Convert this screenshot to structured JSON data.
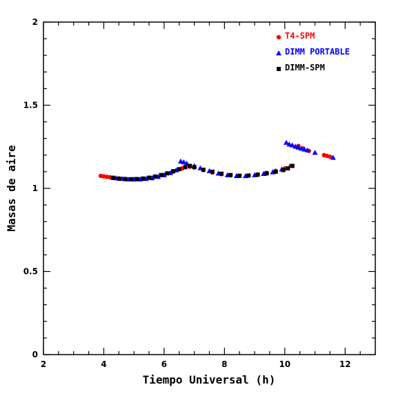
{
  "chart_data": {
    "type": "scatter",
    "title": "",
    "xlabel": "Tiempo Universal (h)",
    "ylabel": "Masas de aire",
    "xlim": [
      2,
      13
    ],
    "ylim": [
      0,
      2
    ],
    "x_ticks": [
      "2",
      "4",
      "6",
      "8",
      "10",
      "12"
    ],
    "y_ticks": [
      "0",
      "0.5",
      "1",
      "1.5",
      "2"
    ],
    "legend_position": "top-right",
    "series": [
      {
        "name": "T4-SPM",
        "color": "#ff0000",
        "marker": "circle",
        "x": [
          3.9,
          4.0,
          4.1,
          4.2,
          4.3,
          4.5,
          4.7,
          5.0,
          5.3,
          5.6,
          6.0,
          6.3,
          6.6,
          6.85,
          7.0,
          7.3,
          7.6,
          7.9,
          8.2,
          8.5,
          8.8,
          9.1,
          9.4,
          9.7,
          10.0,
          10.2,
          10.45,
          10.6,
          10.8,
          11.3,
          11.4,
          11.5
        ],
        "y": [
          1.075,
          1.072,
          1.069,
          1.067,
          1.064,
          1.06,
          1.056,
          1.055,
          1.057,
          1.062,
          1.08,
          1.1,
          1.12,
          1.13,
          1.125,
          1.11,
          1.095,
          1.085,
          1.078,
          1.075,
          1.077,
          1.083,
          1.093,
          1.105,
          1.12,
          1.135,
          1.255,
          1.24,
          1.225,
          1.2,
          1.195,
          1.19
        ]
      },
      {
        "name": "DIMM PORTABLE",
        "color": "#0000ff",
        "marker": "triangle",
        "x": [
          4.4,
          4.6,
          4.8,
          5.0,
          5.2,
          5.4,
          5.6,
          5.8,
          6.0,
          6.2,
          6.4,
          6.55,
          6.65,
          6.75,
          7.0,
          7.2,
          7.5,
          7.8,
          8.1,
          8.4,
          8.7,
          9.0,
          9.3,
          9.6,
          9.9,
          10.05,
          10.15,
          10.25,
          10.35,
          10.45,
          10.55,
          10.65,
          10.75,
          11.0,
          11.6
        ],
        "y": [
          1.062,
          1.058,
          1.055,
          1.054,
          1.055,
          1.058,
          1.062,
          1.07,
          1.08,
          1.093,
          1.11,
          1.163,
          1.158,
          1.15,
          1.135,
          1.122,
          1.105,
          1.09,
          1.08,
          1.075,
          1.075,
          1.08,
          1.088,
          1.098,
          1.115,
          1.275,
          1.265,
          1.26,
          1.252,
          1.246,
          1.24,
          1.235,
          1.23,
          1.215,
          1.185
        ]
      },
      {
        "name": "DIMM-SPM",
        "color": "#000000",
        "marker": "square",
        "x": [
          4.3,
          4.5,
          4.7,
          4.9,
          5.1,
          5.3,
          5.5,
          5.7,
          5.9,
          6.1,
          6.3,
          6.5,
          6.7,
          6.85,
          7.0,
          7.3,
          7.6,
          7.9,
          8.2,
          8.5,
          8.8,
          9.1,
          9.4,
          9.7,
          9.95,
          10.1,
          10.25
        ],
        "y": [
          1.063,
          1.058,
          1.056,
          1.055,
          1.056,
          1.059,
          1.064,
          1.071,
          1.08,
          1.09,
          1.103,
          1.115,
          1.127,
          1.135,
          1.128,
          1.112,
          1.1,
          1.088,
          1.08,
          1.076,
          1.077,
          1.082,
          1.09,
          1.1,
          1.11,
          1.12,
          1.135
        ]
      }
    ]
  }
}
